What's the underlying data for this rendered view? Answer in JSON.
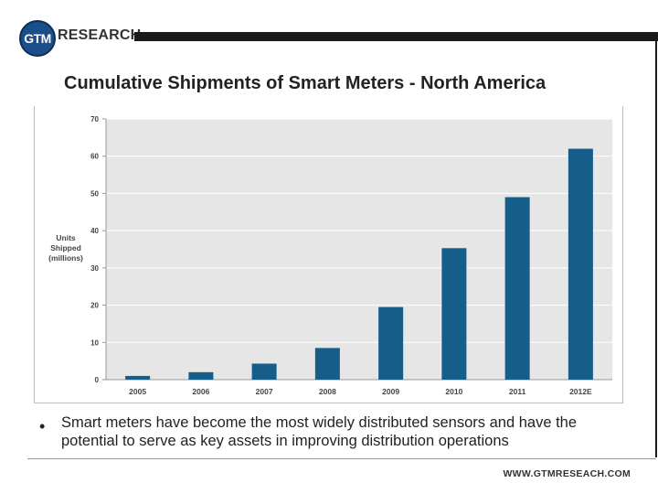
{
  "brand": {
    "badge_text": "GTM",
    "word": "RESEARCH",
    "badge_color": "#1b4f8a"
  },
  "slide": {
    "bullet": "Smart meters have become the most widely distributed sensors and have the potential to serve as key assets in improving distribution operations",
    "footer_url": "WWW.GTMRESEACH.COM"
  },
  "chart_data": {
    "type": "bar",
    "title": "Cumulative Shipments of Smart Meters - North America",
    "ylabel": "Units Shipped (millions)",
    "xlabel": "",
    "categories": [
      "2005",
      "2006",
      "2007",
      "2008",
      "2009",
      "2010",
      "2011",
      "2012E"
    ],
    "values": [
      1,
      2,
      4.3,
      8.5,
      19.5,
      35.3,
      49,
      62
    ],
    "ylim": [
      0,
      70
    ],
    "yticks": [
      0,
      10,
      20,
      30,
      40,
      50,
      60,
      70
    ],
    "grid": true,
    "legend": "none",
    "bar_color": "#155e8a",
    "plot_background": "#e6e6e6"
  }
}
